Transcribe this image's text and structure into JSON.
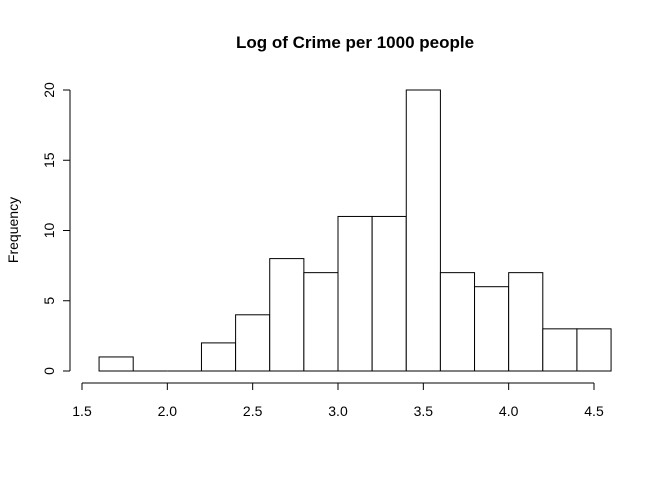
{
  "chart_data": {
    "type": "bar",
    "subtype": "histogram",
    "title": "Log of Crime per 1000 people",
    "xlabel": "",
    "ylabel": "Frequency",
    "xlim": [
      1.5,
      4.6
    ],
    "ylim": [
      0,
      20
    ],
    "bins": [
      {
        "start": 1.6,
        "end": 1.8,
        "count": 1
      },
      {
        "start": 1.8,
        "end": 2.0,
        "count": 0
      },
      {
        "start": 2.0,
        "end": 2.2,
        "count": 0
      },
      {
        "start": 2.2,
        "end": 2.4,
        "count": 2
      },
      {
        "start": 2.4,
        "end": 2.6,
        "count": 4
      },
      {
        "start": 2.6,
        "end": 2.8,
        "count": 8
      },
      {
        "start": 2.8,
        "end": 3.0,
        "count": 7
      },
      {
        "start": 3.0,
        "end": 3.2,
        "count": 11
      },
      {
        "start": 3.2,
        "end": 3.4,
        "count": 11
      },
      {
        "start": 3.4,
        "end": 3.6,
        "count": 20
      },
      {
        "start": 3.6,
        "end": 3.8,
        "count": 7
      },
      {
        "start": 3.8,
        "end": 4.0,
        "count": 6
      },
      {
        "start": 4.0,
        "end": 4.2,
        "count": 7
      },
      {
        "start": 4.2,
        "end": 4.4,
        "count": 3
      },
      {
        "start": 4.4,
        "end": 4.6,
        "count": 3
      }
    ],
    "x_ticks": [
      1.5,
      2.0,
      2.5,
      3.0,
      3.5,
      4.0,
      4.5
    ],
    "x_tick_labels": [
      "1.5",
      "2.0",
      "2.5",
      "3.0",
      "3.5",
      "4.0",
      "4.5"
    ],
    "y_ticks": [
      0,
      5,
      10,
      15,
      20
    ],
    "y_tick_labels": [
      "0",
      "5",
      "10",
      "15",
      "20"
    ],
    "grid": false
  }
}
